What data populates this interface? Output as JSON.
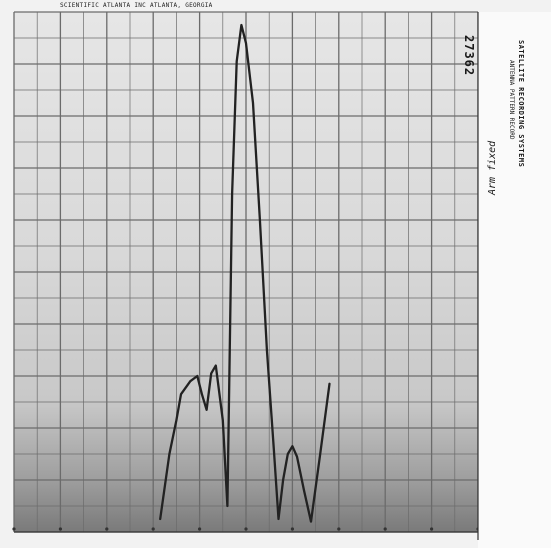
{
  "chart_data": {
    "type": "line",
    "title": "",
    "xlabel": "",
    "ylabel": "",
    "grid": true,
    "xlim": [
      0,
      20
    ],
    "ylim": [
      0,
      20
    ],
    "series": [
      {
        "x": [
          6.3,
          6.7,
          7.0,
          7.2,
          7.6,
          7.9,
          8.1,
          8.3,
          8.5,
          8.7,
          9.0,
          9.2,
          9.4,
          9.6,
          9.8,
          10.0,
          10.3,
          10.6,
          10.9,
          11.2,
          11.4,
          11.6,
          11.8,
          12.0,
          12.2,
          12.5,
          12.8,
          13.2,
          13.6
        ],
        "y": [
          0.5,
          3.0,
          4.3,
          5.3,
          5.8,
          6.0,
          5.3,
          4.7,
          6.1,
          6.4,
          4.3,
          1.0,
          13.0,
          18.1,
          19.5,
          18.8,
          16.5,
          12.0,
          7.0,
          3.2,
          0.5,
          2.0,
          3.0,
          3.3,
          2.9,
          1.6,
          0.4,
          3.0,
          5.7
        ]
      }
    ]
  },
  "labels": {
    "header": "SCIENTIFIC ATLANTA INC  ATLANTA, GEORGIA",
    "side_title": "SATELLITE RECORDING SYSTEMS",
    "side_sub": "ANTENNA PATTERN RECORD",
    "side_number": "27362",
    "side_handwriting": "Arm fixed"
  }
}
